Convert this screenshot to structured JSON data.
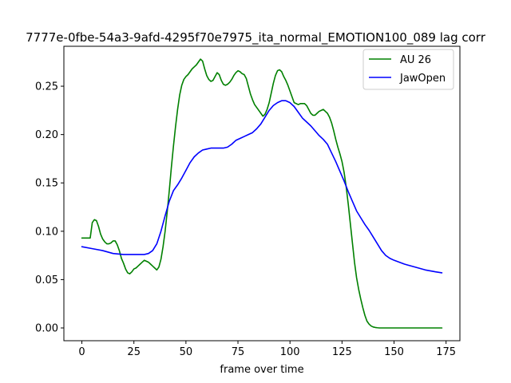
{
  "chart_data": {
    "type": "line",
    "title": "7777e-0fbe-54a3-9afd-4295f70e7975_ita_normal_EMOTION100_089  lag corr",
    "xlabel": "frame over time",
    "ylabel": "",
    "xlim": [
      -8.65,
      181.65
    ],
    "ylim": [
      -0.0132,
      0.2913
    ],
    "xticks": [
      0,
      25,
      50,
      75,
      100,
      125,
      150,
      175
    ],
    "yticks": [
      0.0,
      0.05,
      0.1,
      0.15,
      0.2,
      0.25
    ],
    "ytick_labels": [
      "0.00",
      "0.05",
      "0.10",
      "0.15",
      "0.20",
      "0.25"
    ],
    "grid": false,
    "legend": {
      "position": "upper-right"
    },
    "series": [
      {
        "name": "AU 26",
        "color": "#008000",
        "x": [
          0,
          2,
          4,
          5,
          6,
          7,
          8,
          9,
          10,
          11,
          12,
          13,
          14,
          15,
          16,
          17,
          18,
          19,
          20,
          21,
          22,
          23,
          24,
          25,
          26,
          27,
          28,
          29,
          30,
          31,
          32,
          33,
          34,
          35,
          36,
          37,
          38,
          39,
          40,
          41,
          42,
          43,
          44,
          45,
          46,
          47,
          48,
          49,
          50,
          51,
          52,
          53,
          54,
          55,
          56,
          57,
          58,
          59,
          60,
          61,
          62,
          63,
          64,
          65,
          66,
          67,
          68,
          69,
          70,
          71,
          72,
          73,
          74,
          75,
          76,
          77,
          78,
          79,
          80,
          81,
          82,
          83,
          84,
          85,
          86,
          87,
          88,
          89,
          90,
          91,
          92,
          93,
          94,
          95,
          96,
          97,
          98,
          99,
          100,
          101,
          102,
          103,
          104,
          105,
          106,
          107,
          108,
          109,
          110,
          111,
          112,
          113,
          114,
          115,
          116,
          117,
          118,
          119,
          120,
          121,
          122,
          123,
          124,
          125,
          126,
          127,
          128,
          129,
          130,
          131,
          132,
          133,
          134,
          135,
          136,
          137,
          138,
          139,
          140,
          141,
          142,
          143,
          144,
          146,
          148,
          150,
          155,
          160,
          165,
          170,
          173
        ],
        "y": [
          0.093,
          0.093,
          0.093,
          0.109,
          0.112,
          0.111,
          0.105,
          0.097,
          0.092,
          0.089,
          0.087,
          0.087,
          0.088,
          0.09,
          0.09,
          0.086,
          0.08,
          0.072,
          0.067,
          0.061,
          0.057,
          0.056,
          0.058,
          0.061,
          0.062,
          0.064,
          0.066,
          0.068,
          0.07,
          0.069,
          0.068,
          0.066,
          0.064,
          0.062,
          0.06,
          0.063,
          0.071,
          0.084,
          0.1,
          0.12,
          0.142,
          0.166,
          0.188,
          0.208,
          0.226,
          0.241,
          0.251,
          0.257,
          0.26,
          0.262,
          0.265,
          0.268,
          0.27,
          0.272,
          0.275,
          0.278,
          0.276,
          0.268,
          0.261,
          0.257,
          0.255,
          0.256,
          0.26,
          0.264,
          0.262,
          0.256,
          0.252,
          0.251,
          0.252,
          0.254,
          0.257,
          0.261,
          0.264,
          0.266,
          0.265,
          0.263,
          0.262,
          0.258,
          0.25,
          0.242,
          0.236,
          0.231,
          0.228,
          0.225,
          0.222,
          0.219,
          0.221,
          0.226,
          0.233,
          0.243,
          0.253,
          0.261,
          0.266,
          0.267,
          0.265,
          0.26,
          0.256,
          0.251,
          0.245,
          0.239,
          0.233,
          0.232,
          0.231,
          0.232,
          0.232,
          0.232,
          0.23,
          0.226,
          0.222,
          0.22,
          0.22,
          0.222,
          0.224,
          0.225,
          0.226,
          0.224,
          0.222,
          0.218,
          0.212,
          0.204,
          0.195,
          0.187,
          0.18,
          0.172,
          0.161,
          0.146,
          0.128,
          0.108,
          0.088,
          0.068,
          0.052,
          0.04,
          0.03,
          0.021,
          0.013,
          0.007,
          0.004,
          0.002,
          0.001,
          0.0005,
          0.0002,
          0,
          0,
          0,
          0,
          0,
          0,
          0,
          0,
          0,
          0
        ]
      },
      {
        "name": "JawOpen",
        "color": "#0000ff",
        "x": [
          0,
          5,
          10,
          15,
          20,
          25,
          28,
          30,
          32,
          34,
          36,
          38,
          40,
          42,
          44,
          46,
          48,
          50,
          52,
          54,
          56,
          58,
          60,
          62,
          64,
          66,
          68,
          70,
          72,
          74,
          76,
          78,
          80,
          82,
          84,
          86,
          88,
          90,
          92,
          94,
          96,
          98,
          100,
          102,
          104,
          106,
          108,
          110,
          112,
          114,
          116,
          118,
          120,
          122,
          124,
          126,
          128,
          130,
          132,
          134,
          136,
          138,
          140,
          142,
          144,
          146,
          148,
          150,
          155,
          160,
          165,
          170,
          173
        ],
        "y": [
          0.084,
          0.082,
          0.08,
          0.077,
          0.076,
          0.076,
          0.076,
          0.076,
          0.077,
          0.08,
          0.087,
          0.1,
          0.116,
          0.131,
          0.142,
          0.148,
          0.155,
          0.163,
          0.171,
          0.177,
          0.181,
          0.184,
          0.185,
          0.186,
          0.186,
          0.186,
          0.186,
          0.187,
          0.19,
          0.194,
          0.196,
          0.198,
          0.2,
          0.202,
          0.206,
          0.211,
          0.218,
          0.225,
          0.23,
          0.233,
          0.235,
          0.235,
          0.233,
          0.229,
          0.223,
          0.217,
          0.213,
          0.209,
          0.204,
          0.199,
          0.195,
          0.19,
          0.181,
          0.172,
          0.162,
          0.152,
          0.141,
          0.131,
          0.121,
          0.114,
          0.107,
          0.101,
          0.094,
          0.087,
          0.08,
          0.075,
          0.072,
          0.07,
          0.066,
          0.063,
          0.06,
          0.058,
          0.057
        ]
      }
    ]
  }
}
